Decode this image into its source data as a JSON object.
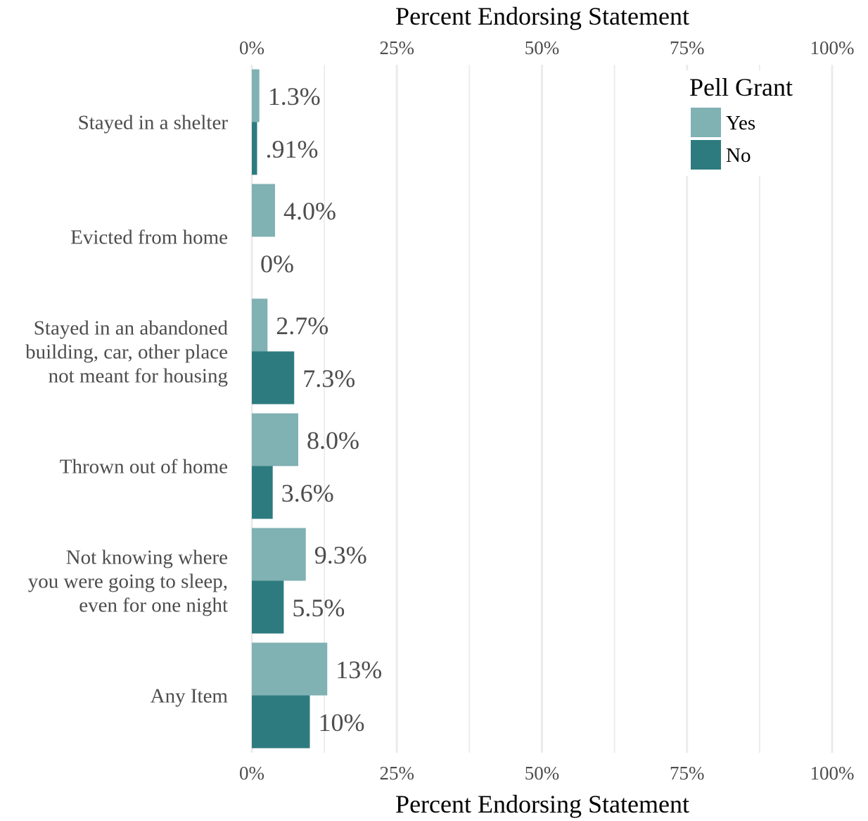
{
  "chart_data": {
    "type": "bar",
    "orientation": "horizontal",
    "xlabel": "Percent Endorsing Statement",
    "xlim": [
      0,
      100
    ],
    "xticks": [
      0,
      25,
      50,
      75,
      100
    ],
    "xtick_labels": [
      "0%",
      "25%",
      "50%",
      "75%",
      "100%"
    ],
    "grid": true,
    "categories": [
      [
        "Stayed in a shelter"
      ],
      [
        "Evicted from home"
      ],
      [
        "Stayed in an abandoned",
        "building, car, other place",
        "not meant for housing"
      ],
      [
        "Thrown out of home"
      ],
      [
        "Not knowing where",
        "you were going to sleep,",
        "even for one night"
      ],
      [
        "Any Item"
      ]
    ],
    "series": [
      {
        "name": "Yes",
        "color": "#80b1b3",
        "values": [
          1.3,
          4.0,
          2.7,
          8.0,
          9.3,
          13
        ],
        "labels": [
          "1.3%",
          "4.0%",
          "2.7%",
          "8.0%",
          "9.3%",
          "13%"
        ]
      },
      {
        "name": "No",
        "color": "#2d7b7f",
        "values": [
          0.91,
          0,
          7.3,
          3.6,
          5.5,
          10
        ],
        "labels": [
          ".91%",
          "0%",
          "7.3%",
          "3.6%",
          "5.5%",
          "10%"
        ]
      }
    ],
    "legend": {
      "title": "Pell Grant",
      "placement": "top-right"
    }
  }
}
